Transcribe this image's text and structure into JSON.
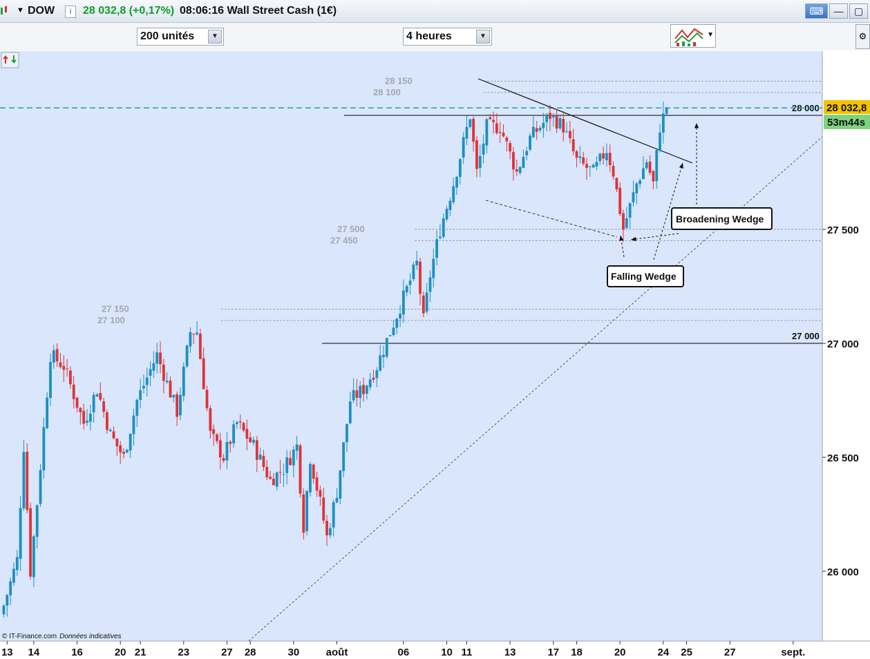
{
  "header": {
    "symbol": "DOW",
    "quote": "28 032,8 (+0,17%)",
    "time_name": "08:06:16 Wall Street Cash (1€)"
  },
  "toolbar": {
    "units_value": "200 unités",
    "period_value": "4 heures"
  },
  "footer": {
    "copyright": "© IT-Finance.com",
    "note": "Données indicatives"
  },
  "colors": {
    "background": "#d9e6fb",
    "up": "#1c8fc2",
    "down": "#e03236",
    "last_price": "#f2c200",
    "timer": "#7fd37f"
  },
  "chart_data": {
    "type": "candlestick",
    "ylim": [
      25700,
      28400
    ],
    "y_ticks": [
      {
        "value": 26000,
        "label": "26 000"
      },
      {
        "value": 26500,
        "label": "26 500"
      },
      {
        "value": 27000,
        "label": "27 000"
      },
      {
        "value": 27500,
        "label": "27 500"
      }
    ],
    "x_ticks": [
      {
        "i": 1,
        "label": "13"
      },
      {
        "i": 9,
        "label": "14"
      },
      {
        "i": 22,
        "label": "16"
      },
      {
        "i": 35,
        "label": "20"
      },
      {
        "i": 41,
        "label": "21"
      },
      {
        "i": 54,
        "label": "23"
      },
      {
        "i": 67,
        "label": "27"
      },
      {
        "i": 74,
        "label": "28"
      },
      {
        "i": 87,
        "label": "30"
      },
      {
        "i": 100,
        "label": "août"
      },
      {
        "i": 120,
        "label": "06"
      },
      {
        "i": 133,
        "label": "10"
      },
      {
        "i": 139,
        "label": "11"
      },
      {
        "i": 152,
        "label": "13"
      },
      {
        "i": 165,
        "label": "17"
      },
      {
        "i": 172,
        "label": "18"
      },
      {
        "i": 185,
        "label": "20"
      },
      {
        "i": 198,
        "label": "24"
      },
      {
        "i": 205,
        "label": "25"
      },
      {
        "i": 218,
        "label": "27"
      },
      {
        "i": 237,
        "label": "sept."
      }
    ],
    "waypoints": [
      [
        0,
        25850
      ],
      [
        4,
        26050
      ],
      [
        6,
        26550
      ],
      [
        8,
        26000
      ],
      [
        10,
        26300
      ],
      [
        14,
        26950
      ],
      [
        18,
        26900
      ],
      [
        24,
        26650
      ],
      [
        28,
        26800
      ],
      [
        32,
        26600
      ],
      [
        36,
        26500
      ],
      [
        40,
        26750
      ],
      [
        46,
        26950
      ],
      [
        52,
        26700
      ],
      [
        56,
        27050
      ],
      [
        58,
        27050
      ],
      [
        62,
        26600
      ],
      [
        66,
        26500
      ],
      [
        70,
        26650
      ],
      [
        75,
        26550
      ],
      [
        80,
        26400
      ],
      [
        84,
        26450
      ],
      [
        88,
        26550
      ],
      [
        90,
        26200
      ],
      [
        92,
        26500
      ],
      [
        95,
        26300
      ],
      [
        97,
        26150
      ],
      [
        100,
        26350
      ],
      [
        104,
        26750
      ],
      [
        108,
        26800
      ],
      [
        112,
        26900
      ],
      [
        116,
        27050
      ],
      [
        120,
        27200
      ],
      [
        124,
        27350
      ],
      [
        126,
        27100
      ],
      [
        128,
        27300
      ],
      [
        131,
        27500
      ],
      [
        135,
        27700
      ],
      [
        140,
        28000
      ],
      [
        142,
        27750
      ],
      [
        145,
        27950
      ],
      [
        149,
        27950
      ],
      [
        154,
        27750
      ],
      [
        158,
        27900
      ],
      [
        164,
        28000
      ],
      [
        168,
        27950
      ],
      [
        172,
        27800
      ],
      [
        177,
        27750
      ],
      [
        181,
        27850
      ],
      [
        183,
        27750
      ],
      [
        186,
        27500
      ],
      [
        190,
        27700
      ],
      [
        193,
        27800
      ],
      [
        195,
        27700
      ],
      [
        197,
        27950
      ],
      [
        199,
        28033
      ]
    ],
    "last_price": {
      "value": 28032.8,
      "label": "28 032,8",
      "timer": "53m44s"
    },
    "levels": [
      {
        "value": 28150,
        "label": "28 150",
        "style": "gray-dashed"
      },
      {
        "value": 28100,
        "label": "28 100",
        "style": "gray-dashed"
      },
      {
        "value": 28000,
        "label": "28 000",
        "style": "black-solid"
      },
      {
        "value": 27500,
        "label": "27 500",
        "style": "gray-dashed"
      },
      {
        "value": 27450,
        "label": "27 450",
        "style": "gray-dashed"
      },
      {
        "value": 27150,
        "label": "27 150",
        "style": "gray-dashed"
      },
      {
        "value": 27100,
        "label": "27 100",
        "style": "gray-dashed"
      },
      {
        "value": 27000,
        "label": "27 000",
        "style": "black-solid"
      }
    ],
    "annotations": [
      {
        "text": "Broadening Wedge"
      },
      {
        "text": "Falling Wedge"
      }
    ]
  }
}
